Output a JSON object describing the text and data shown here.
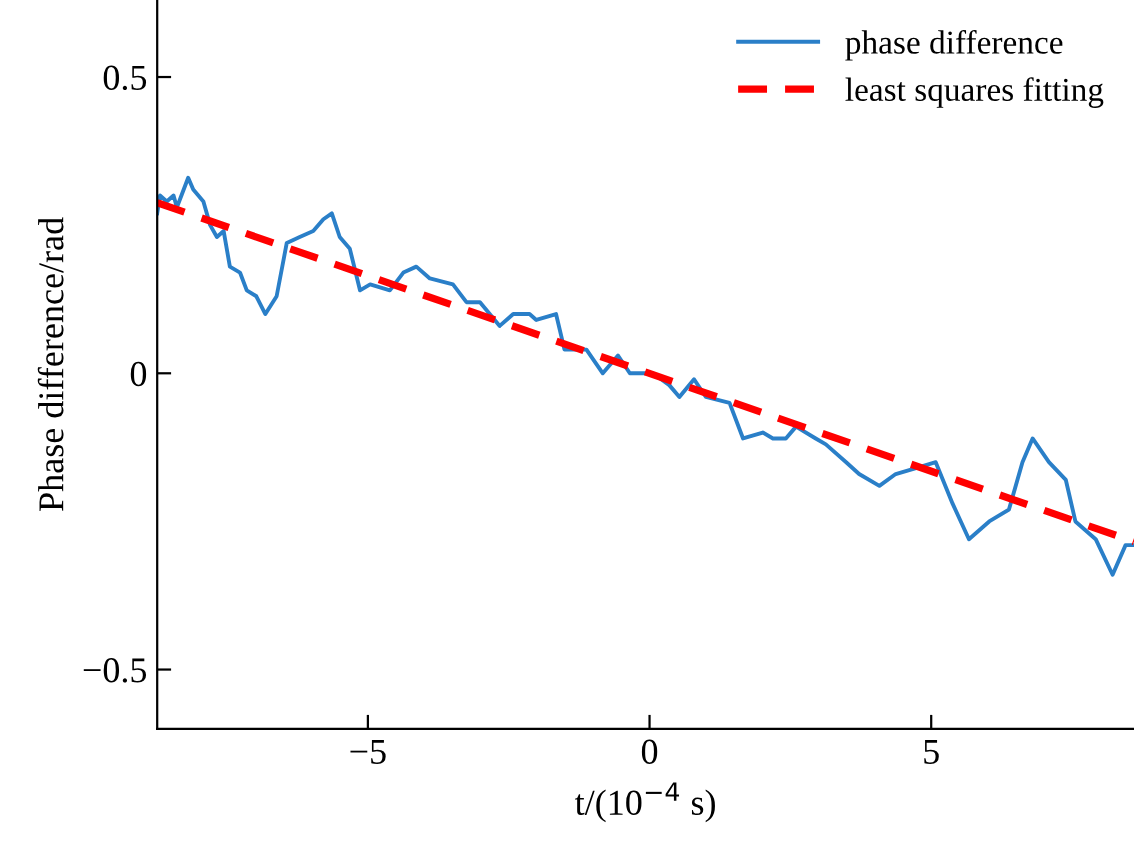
{
  "chart_data": {
    "type": "line",
    "xlabel": "t/(10$^{−4}$ s)",
    "ylabel": "Phase difference/rad",
    "xlim": [
      -8.74,
      8.6
    ],
    "ylim": [
      -0.6,
      0.63
    ],
    "xticks": [
      {
        "value": -5,
        "label": "−5"
      },
      0,
      5
    ],
    "yticks": [
      {
        "value": -0.5,
        "label": "−0.5"
      },
      0,
      0.5
    ],
    "grid": false,
    "legend": "top right",
    "series": [
      {
        "name": "phase difference",
        "color": "#2a7fc8",
        "line_style": "solid",
        "x": [
          -8.74,
          -8.69,
          -8.57,
          -8.45,
          -8.39,
          -8.31,
          -8.19,
          -8.1,
          -7.92,
          -7.8,
          -7.68,
          -7.56,
          -7.45,
          -7.27,
          -7.15,
          -6.98,
          -6.82,
          -6.62,
          -6.44,
          -6.21,
          -5.97,
          -5.79,
          -5.64,
          -5.5,
          -5.32,
          -5.14,
          -4.96,
          -4.61,
          -4.37,
          -4.14,
          -3.9,
          -3.49,
          -3.25,
          -3.01,
          -2.66,
          -2.42,
          -2.13,
          -2.01,
          -1.66,
          -1.51,
          -1.12,
          -0.83,
          -0.56,
          -0.35,
          0.06,
          0.35,
          0.53,
          0.79,
          1.0,
          1.42,
          1.66,
          2.01,
          2.19,
          2.42,
          2.6,
          2.95,
          3.13,
          3.49,
          3.72,
          4.08,
          4.37,
          4.73,
          5.08,
          5.38,
          5.67,
          6.03,
          6.38,
          6.62,
          6.8,
          7.09,
          7.39,
          7.56,
          7.92,
          8.22,
          8.45,
          8.57
        ],
        "values": [
          0.27,
          0.3,
          0.29,
          0.3,
          0.28,
          0.3,
          0.33,
          0.31,
          0.29,
          0.25,
          0.23,
          0.24,
          0.18,
          0.17,
          0.14,
          0.13,
          0.1,
          0.13,
          0.22,
          0.23,
          0.24,
          0.26,
          0.27,
          0.23,
          0.21,
          0.14,
          0.15,
          0.14,
          0.17,
          0.18,
          0.16,
          0.15,
          0.12,
          0.12,
          0.08,
          0.1,
          0.1,
          0.09,
          0.1,
          0.04,
          0.04,
          0.0,
          0.03,
          0.0,
          0.0,
          -0.02,
          -0.04,
          -0.01,
          -0.04,
          -0.05,
          -0.11,
          -0.1,
          -0.11,
          -0.11,
          -0.09,
          -0.11,
          -0.12,
          -0.15,
          -0.17,
          -0.19,
          -0.17,
          -0.16,
          -0.15,
          -0.22,
          -0.28,
          -0.25,
          -0.23,
          -0.15,
          -0.11,
          -0.15,
          -0.18,
          -0.25,
          -0.28,
          -0.34,
          -0.29,
          -0.29
        ]
      },
      {
        "name": "least squares fitting",
        "color": "#ff0000",
        "line_style": "dashed",
        "x": [
          -8.74,
          8.6
        ],
        "values": [
          0.288,
          -0.284
        ]
      }
    ]
  }
}
